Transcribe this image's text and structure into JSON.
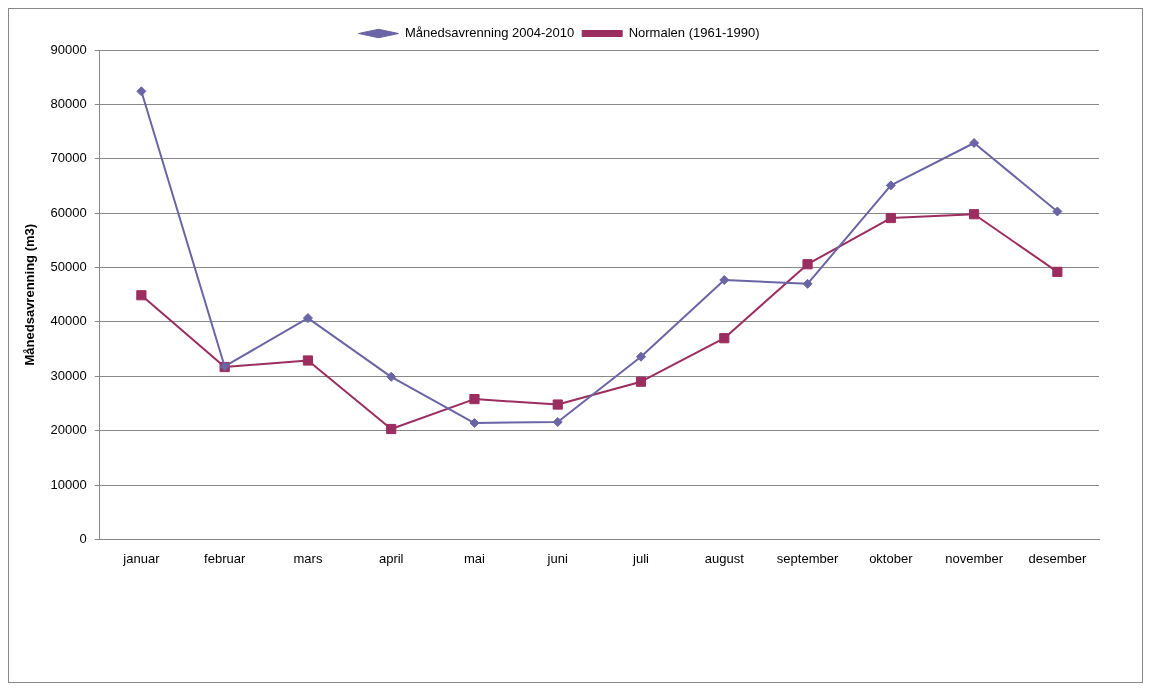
{
  "chart_data": {
    "type": "line",
    "ylabel": "Månedsavrenning (m3)",
    "categories": [
      "januar",
      "februar",
      "mars",
      "april",
      "mai",
      "juni",
      "juli",
      "august",
      "september",
      "oktober",
      "november",
      "desember"
    ],
    "series": [
      {
        "name": "Månedsavrenning 2004-2010",
        "color": "#6a65a4",
        "marker": "diamond",
        "values": [
          82400,
          31800,
          40700,
          29900,
          21400,
          21600,
          33600,
          47700,
          47000,
          65100,
          72900,
          60300
        ]
      },
      {
        "name": "Normalen (1961-1990)",
        "color": "#9b2d5f",
        "marker": "square",
        "values": [
          44900,
          31700,
          32900,
          20300,
          25800,
          24800,
          29000,
          37000,
          50600,
          59100,
          59800,
          49200
        ]
      }
    ],
    "ylim": [
      0,
      90000
    ],
    "yticks": [
      0,
      10000,
      20000,
      30000,
      40000,
      50000,
      60000,
      70000,
      80000,
      90000
    ],
    "grid": "y",
    "legend": "top",
    "line_style": "solid"
  }
}
